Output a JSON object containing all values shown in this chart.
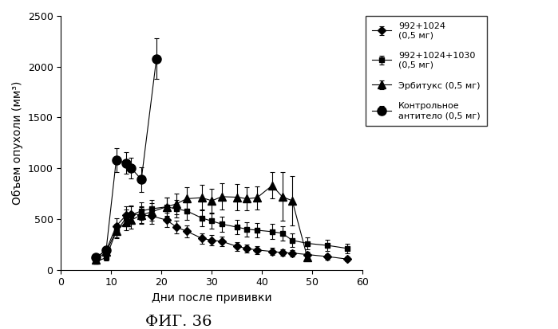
{
  "title": "ФИГ. 36",
  "xlabel": "Дни после прививки",
  "ylabel": "Объем опухоли (мм³)",
  "xlim": [
    0,
    60
  ],
  "ylim": [
    0,
    2500
  ],
  "xticks": [
    0,
    10,
    20,
    30,
    40,
    50,
    60
  ],
  "yticks": [
    0,
    500,
    1000,
    1500,
    2000,
    2500
  ],
  "series": [
    {
      "label": "992+1024\n(0,5 мг)",
      "marker": "D",
      "color": "#000000",
      "x": [
        7,
        9,
        11,
        13,
        14,
        16,
        18,
        21,
        23,
        25,
        28,
        30,
        32,
        35,
        37,
        39,
        42,
        44,
        46,
        49,
        53,
        57
      ],
      "y": [
        120,
        190,
        430,
        540,
        550,
        540,
        530,
        490,
        420,
        380,
        310,
        290,
        280,
        230,
        210,
        195,
        180,
        170,
        165,
        150,
        130,
        105
      ],
      "yerr": [
        20,
        35,
        75,
        85,
        85,
        80,
        80,
        70,
        65,
        60,
        50,
        50,
        50,
        45,
        40,
        38,
        35,
        33,
        32,
        30,
        28,
        25
      ]
    },
    {
      "label": "992+1024+1030\n(0,5 мг)",
      "marker": "s",
      "color": "#000000",
      "x": [
        7,
        9,
        11,
        13,
        14,
        16,
        18,
        21,
        23,
        25,
        28,
        30,
        32,
        35,
        37,
        39,
        42,
        44,
        46,
        49,
        53,
        57
      ],
      "y": [
        80,
        120,
        380,
        510,
        540,
        580,
        600,
        620,
        600,
        580,
        510,
        480,
        450,
        420,
        400,
        390,
        375,
        360,
        290,
        260,
        240,
        210
      ],
      "yerr": [
        18,
        28,
        65,
        85,
        85,
        85,
        88,
        90,
        88,
        85,
        80,
        78,
        75,
        72,
        70,
        70,
        75,
        72,
        68,
        62,
        55,
        50
      ]
    },
    {
      "label": "Эрбитукс (0,5 мг)",
      "marker": "^",
      "color": "#000000",
      "x": [
        7,
        9,
        11,
        13,
        14,
        16,
        18,
        21,
        23,
        25,
        28,
        30,
        32,
        35,
        37,
        39,
        42,
        44,
        46,
        49
      ],
      "y": [
        100,
        175,
        385,
        470,
        490,
        540,
        570,
        620,
        650,
        700,
        710,
        680,
        720,
        715,
        700,
        710,
        830,
        720,
        680,
        120
      ],
      "yerr": [
        20,
        32,
        68,
        80,
        82,
        85,
        88,
        95,
        100,
        115,
        125,
        120,
        130,
        128,
        115,
        115,
        130,
        240,
        240,
        28
      ]
    },
    {
      "label": "Контрольное\nантитело (0,5 мг)",
      "marker": "o",
      "color": "#000000",
      "x": [
        7,
        9,
        11,
        13,
        14,
        16,
        19
      ],
      "y": [
        120,
        195,
        1080,
        1050,
        1000,
        890,
        2080
      ],
      "yerr": [
        25,
        40,
        120,
        105,
        100,
        120,
        200
      ]
    }
  ],
  "legend_labels": [
    "992+1024\n(0,5 мг)",
    "992+1024+1030\n(0,5 мг)",
    "Эрбитукс (0,5 мг)",
    "Контрольное\nантитело (0,5 мг)"
  ],
  "background_color": "#ffffff"
}
